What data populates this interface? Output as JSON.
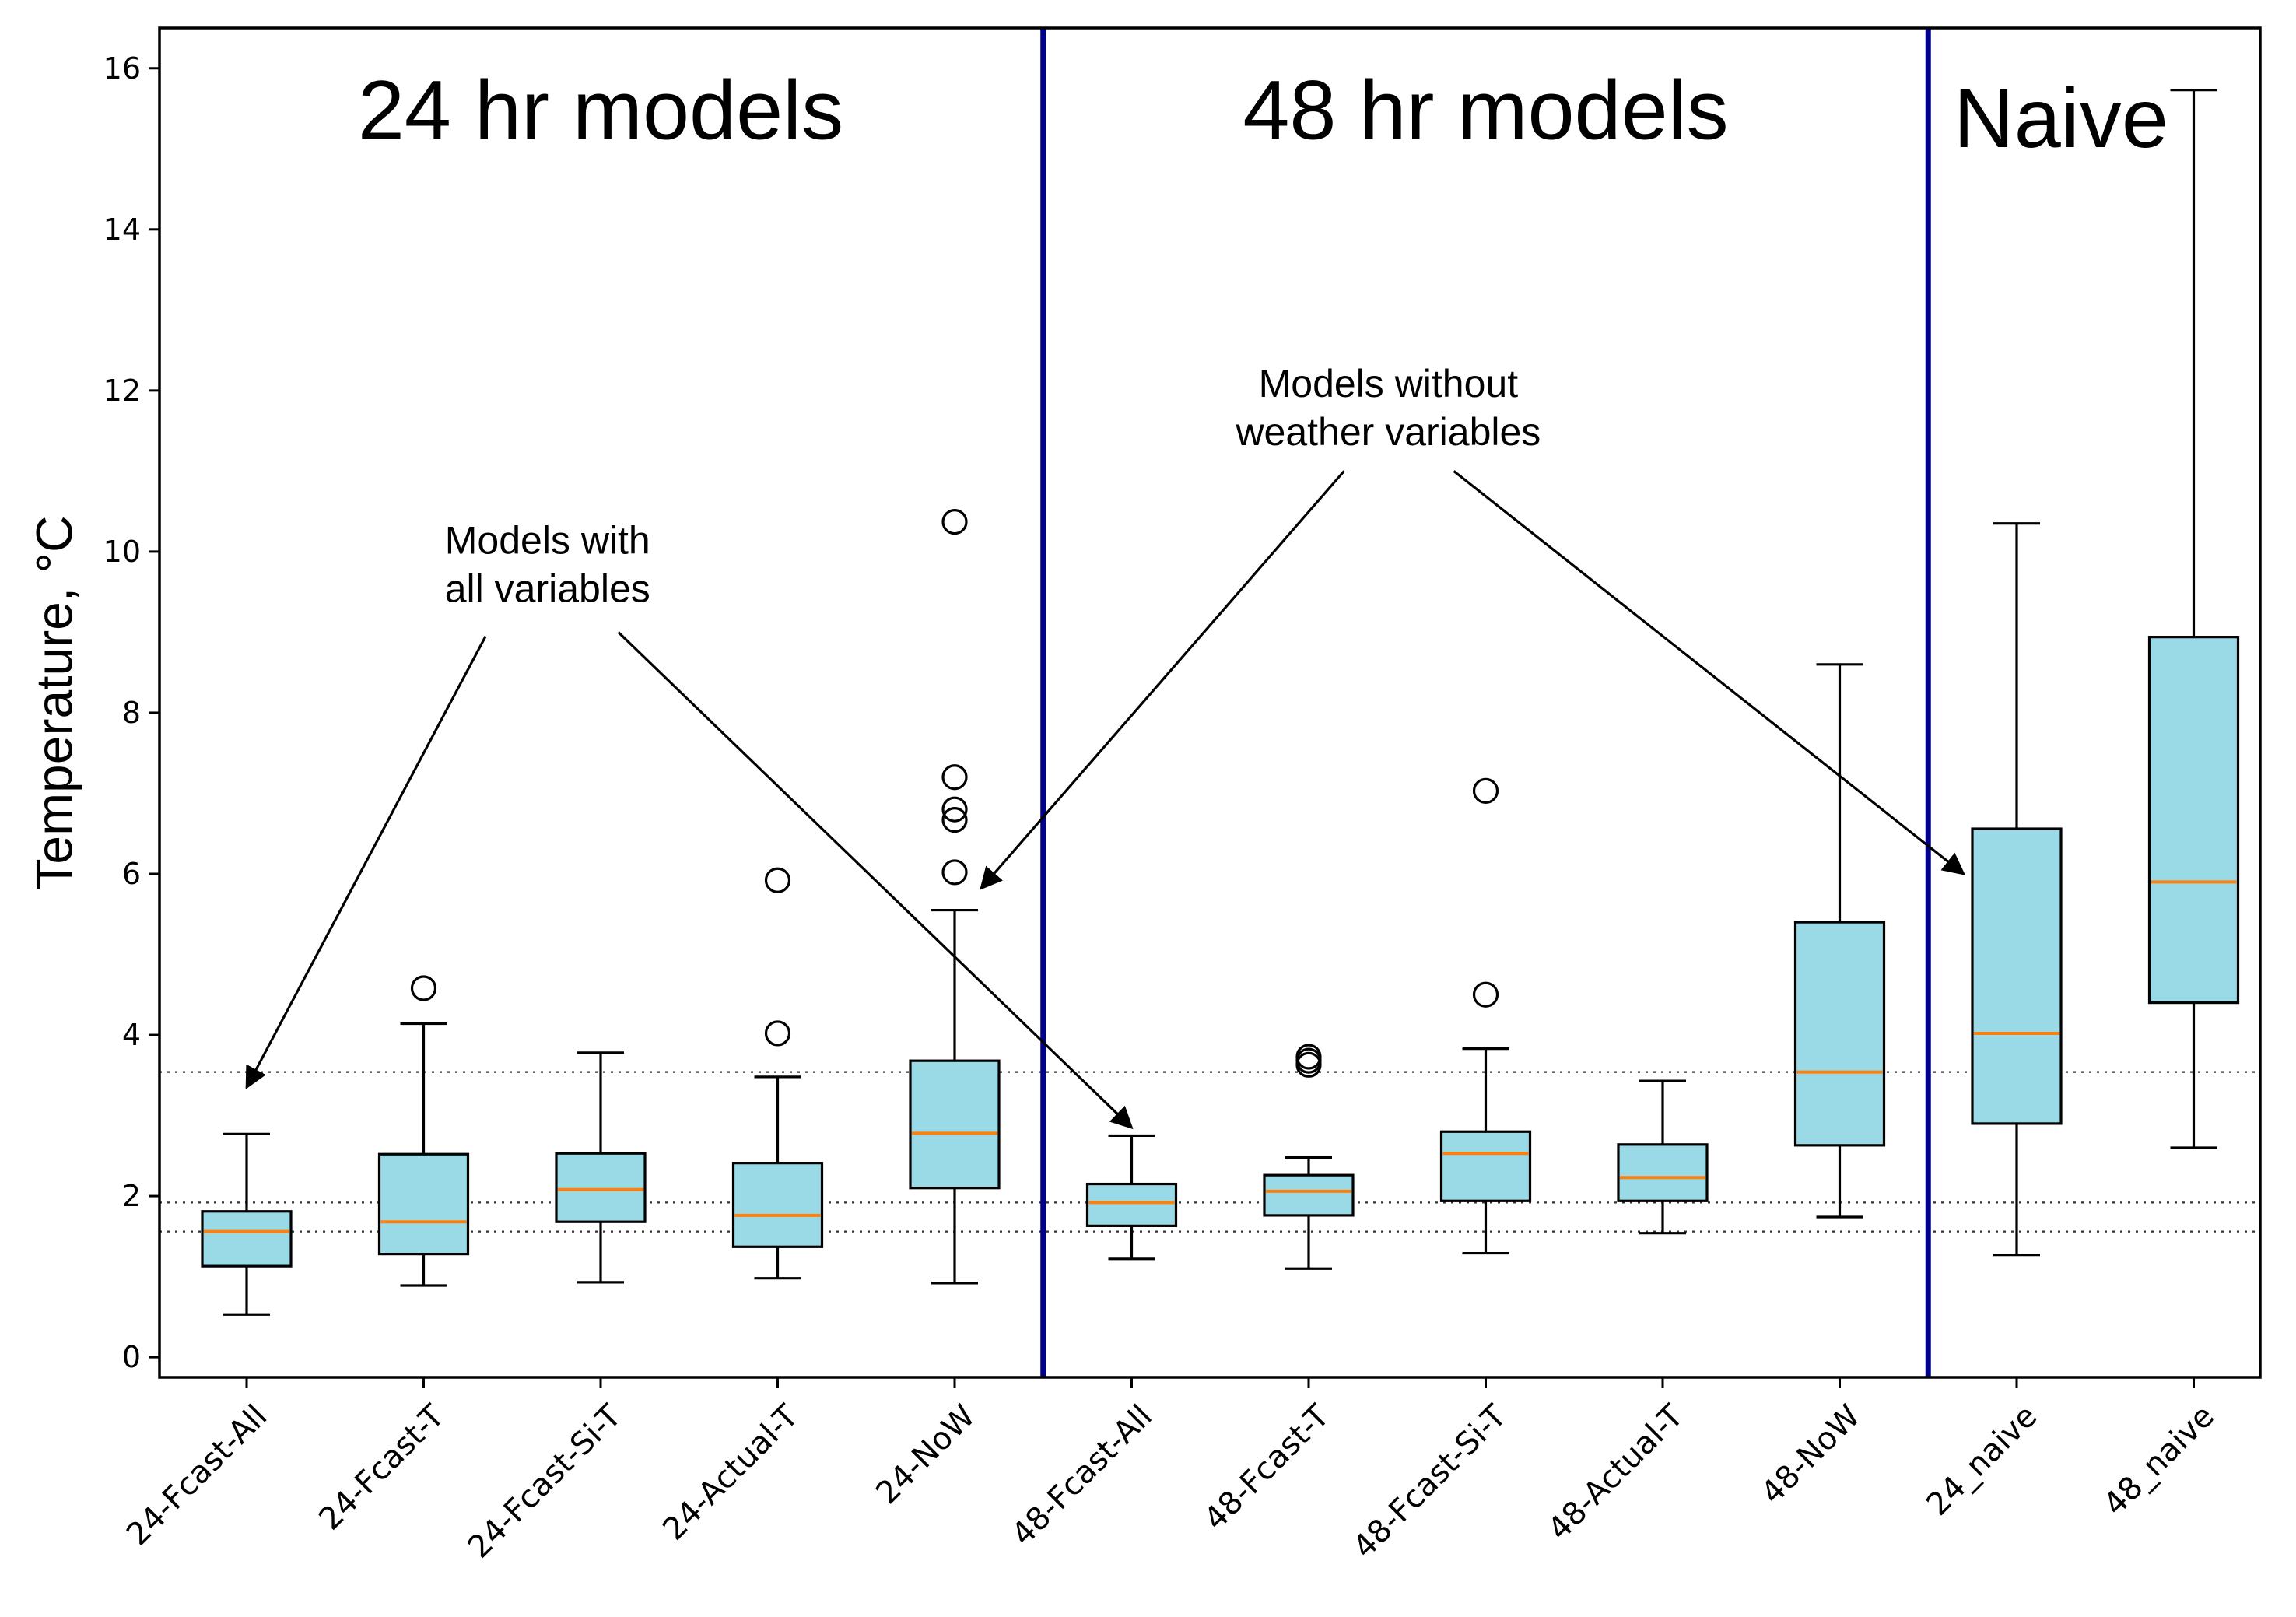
{
  "chart_data": {
    "type": "box",
    "title": "",
    "xlabel": "",
    "ylabel": "Temperature, °C",
    "ylim": [
      -0.25,
      16.5
    ],
    "yticks": [
      0,
      2,
      4,
      6,
      8,
      10,
      12,
      14,
      16
    ],
    "ytick_labels": [
      "0",
      "2",
      "4",
      "6",
      "8",
      "10",
      "12",
      "14",
      "16"
    ],
    "grid": false,
    "colors": {
      "box_fill": "#99dae6",
      "median": "#ff7f0e",
      "divider": "#00008b",
      "edge": "#000000"
    },
    "categories": [
      "24-Fcast-All",
      "24-Fcast-T",
      "24-Fcast-Si-T",
      "24-Actual-T",
      "24-NoW",
      "48-Fcast-All",
      "48-Fcast-T",
      "48-Fcast-Si-T",
      "48-Actual-T",
      "48-NoW",
      "24_naive",
      "48_naive"
    ],
    "boxes": [
      {
        "label": "24-Fcast-All",
        "whislo": 0.53,
        "q1": 1.13,
        "med": 1.56,
        "q3": 1.81,
        "whishi": 2.77,
        "fliers": []
      },
      {
        "label": "24-Fcast-T",
        "whislo": 0.89,
        "q1": 1.28,
        "med": 1.68,
        "q3": 2.52,
        "whishi": 4.14,
        "fliers": [
          4.58
        ]
      },
      {
        "label": "24-Fcast-Si-T",
        "whislo": 0.93,
        "q1": 1.68,
        "med": 2.08,
        "q3": 2.53,
        "whishi": 3.78,
        "fliers": []
      },
      {
        "label": "24-Actual-T",
        "whislo": 0.98,
        "q1": 1.37,
        "med": 1.76,
        "q3": 2.41,
        "whishi": 3.48,
        "fliers": [
          4.02,
          5.92
        ]
      },
      {
        "label": "24-NoW",
        "whislo": 0.92,
        "q1": 2.1,
        "med": 2.78,
        "q3": 3.68,
        "whishi": 5.55,
        "fliers": [
          6.02,
          6.67,
          6.8,
          7.2,
          10.37
        ]
      },
      {
        "label": "48-Fcast-All",
        "whislo": 1.22,
        "q1": 1.63,
        "med": 1.92,
        "q3": 2.15,
        "whishi": 2.75,
        "fliers": []
      },
      {
        "label": "48-Fcast-T",
        "whislo": 1.1,
        "q1": 1.76,
        "med": 2.06,
        "q3": 2.26,
        "whishi": 2.48,
        "fliers": [
          3.63,
          3.68,
          3.73
        ]
      },
      {
        "label": "48-Fcast-Si-T",
        "whislo": 1.29,
        "q1": 1.94,
        "med": 2.53,
        "q3": 2.8,
        "whishi": 3.83,
        "fliers": [
          4.5,
          7.03
        ]
      },
      {
        "label": "48-Actual-T",
        "whislo": 1.54,
        "q1": 1.94,
        "med": 2.23,
        "q3": 2.64,
        "whishi": 3.43,
        "fliers": []
      },
      {
        "label": "48-NoW",
        "whislo": 1.74,
        "q1": 2.63,
        "med": 3.54,
        "q3": 5.4,
        "whishi": 8.6,
        "fliers": []
      },
      {
        "label": "24_naive",
        "whislo": 1.27,
        "q1": 2.9,
        "med": 4.02,
        "q3": 6.56,
        "whishi": 10.35,
        "fliers": []
      },
      {
        "label": "48_naive",
        "whislo": 2.6,
        "q1": 4.4,
        "med": 5.9,
        "q3": 8.94,
        "whishi": 15.73,
        "fliers": []
      }
    ],
    "reference_lines": [
      3.54,
      1.92,
      1.56
    ],
    "dividers_after_index": [
      4,
      9
    ],
    "section_titles": [
      {
        "text": "24 hr models",
        "x": 3.0,
        "y": 15.4
      },
      {
        "text": "48 hr models",
        "x": 8.0,
        "y": 15.4
      },
      {
        "text": "Naive",
        "x": 11.25,
        "y": 15.3
      }
    ],
    "annotations": [
      {
        "lines": [
          "Models with",
          "all variables"
        ],
        "text_x": 2.7,
        "text_y": 10.1,
        "arrows": [
          {
            "from": [
              2.35,
              8.95
            ],
            "to": [
              1.0,
              3.35
            ]
          },
          {
            "from": [
              3.1,
              9.0
            ],
            "to": [
              6.0,
              2.85
            ]
          }
        ]
      },
      {
        "lines": [
          "Models without",
          "weather variables"
        ],
        "text_x": 7.45,
        "text_y": 12.05,
        "arrows": [
          {
            "from": [
              7.2,
              11.0
            ],
            "to": [
              5.15,
              5.82
            ]
          },
          {
            "from": [
              7.82,
              11.0
            ],
            "to": [
              10.7,
              6.0
            ]
          }
        ]
      }
    ]
  }
}
